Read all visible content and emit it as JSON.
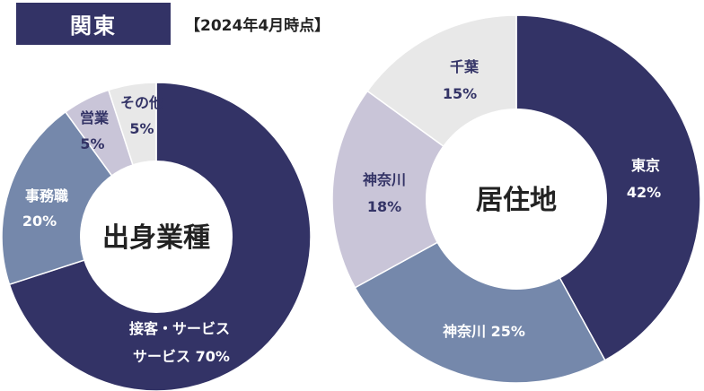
{
  "header": {
    "region": "関東",
    "as_of": "【2024年4月時点】"
  },
  "colors": {
    "dark": "#333366",
    "medium": "#7588ab",
    "light": "#c9c5d8",
    "lightest": "#e8e8e8"
  },
  "chart_data": [
    {
      "type": "pie",
      "title": "出身業種",
      "slices": [
        {
          "name": "接客・サービス",
          "value": 70,
          "label": "70%",
          "color": "#333366"
        },
        {
          "name": "事務職",
          "value": 20,
          "label": "20%",
          "color": "#7588ab"
        },
        {
          "name": "営業",
          "value": 5,
          "label": "5%",
          "color": "#c9c5d8"
        },
        {
          "name": "その他",
          "value": 5,
          "label": "5%",
          "color": "#e8e8e8"
        }
      ]
    },
    {
      "type": "pie",
      "title": "居住地",
      "slices": [
        {
          "name": "東京",
          "value": 42,
          "label": "42%",
          "color": "#333366"
        },
        {
          "name": "神奈川",
          "value": 25,
          "label": "25%",
          "color": "#7588ab"
        },
        {
          "name": "神奈川",
          "value": 18,
          "label": "18%",
          "color": "#c9c5d8"
        },
        {
          "name": "千葉",
          "value": 15,
          "label": "15%",
          "color": "#e8e8e8"
        }
      ]
    }
  ]
}
